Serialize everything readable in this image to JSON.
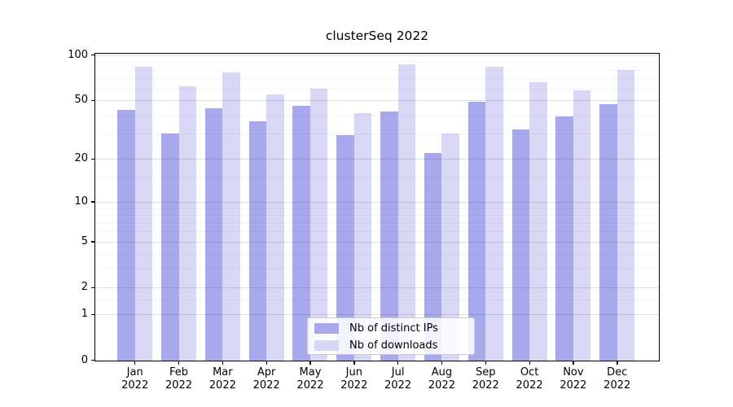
{
  "title": "clusterSeq 2022",
  "chart_data": {
    "type": "bar",
    "title": "clusterSeq 2022",
    "yscale": "pseudo-log (log10(value+1))",
    "ylim": [
      0,
      102
    ],
    "grid": "horizontal major + minor",
    "legend_position": "lower center",
    "categories": [
      "Jan 2022",
      "Feb 2022",
      "Mar 2022",
      "Apr 2022",
      "May 2022",
      "Jun 2022",
      "Jul 2022",
      "Aug 2022",
      "Sep 2022",
      "Oct 2022",
      "Nov 2022",
      "Dec 2022"
    ],
    "series": [
      {
        "name": "Nb of distinct IPs",
        "color": "#a8a8ed",
        "values": [
          43,
          30,
          44,
          36,
          46,
          29,
          42,
          22,
          49,
          32,
          39,
          47
        ]
      },
      {
        "name": "Nb of downloads",
        "color": "#d8d8f6",
        "values": [
          84,
          62,
          77,
          55,
          60,
          41,
          87,
          30,
          84,
          66,
          58,
          80
        ]
      }
    ],
    "y_ticks": [
      0,
      1,
      2,
      5,
      10,
      20,
      50,
      100
    ],
    "y_minor_ticks": [
      1.5,
      3,
      4,
      6,
      7,
      8,
      9,
      15,
      30,
      40,
      60,
      70,
      80,
      90
    ]
  },
  "colors": {
    "background": "#ffffff",
    "spine": "#000000",
    "text": "#000000",
    "bar_dark": "#a8a8ed",
    "bar_light": "#d8d8f6",
    "legend_border": "#cccccc"
  }
}
